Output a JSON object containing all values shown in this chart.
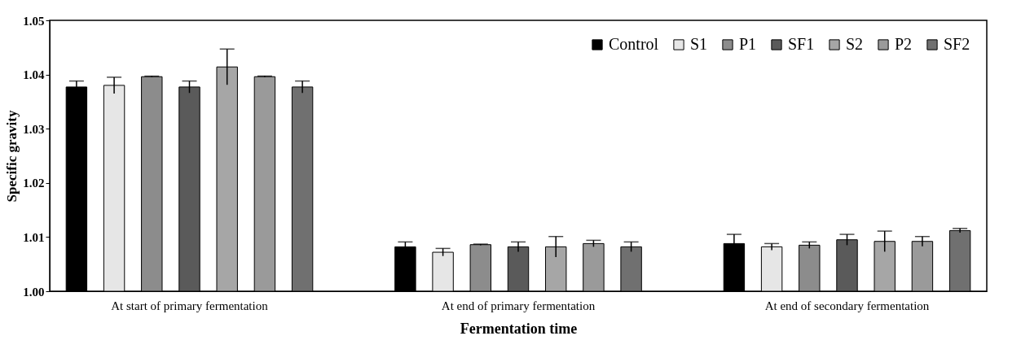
{
  "chart_data": {
    "type": "bar",
    "xlabel": "Fermentation time",
    "ylabel": "Specific gravity",
    "categories": [
      "At start of primary fermentation",
      "At end of primary fermentation",
      "At end of secondary fermentation"
    ],
    "ylim": [
      1.0,
      1.05
    ],
    "yticks": [
      {
        "value": 1.0,
        "label": "1.00"
      },
      1.01,
      1.02,
      1.03,
      1.04,
      1.05
    ],
    "grid": false,
    "legend": "top right",
    "series": [
      {
        "name": "Control",
        "color": "#000000",
        "values": [
          1.0377,
          1.0082,
          1.0088
        ],
        "errors": [
          0.0011,
          0.0009,
          0.0017
        ]
      },
      {
        "name": "S1",
        "color": "#e6e6e6",
        "values": [
          1.038,
          1.0072,
          1.0082
        ],
        "errors": [
          0.0015,
          0.0007,
          0.0006
        ]
      },
      {
        "name": "P1",
        "color": "#8c8c8c",
        "values": [
          1.0396,
          1.0086,
          1.0085
        ],
        "errors": [
          0.0001,
          0.0001,
          0.0006
        ]
      },
      {
        "name": "SF1",
        "color": "#5a5a5a",
        "values": [
          1.0377,
          1.0082,
          1.0095
        ],
        "errors": [
          0.0011,
          0.0009,
          0.001
        ]
      },
      {
        "name": "S2",
        "color": "#a6a6a6",
        "values": [
          1.0414,
          1.0082,
          1.0092
        ],
        "errors": [
          0.0033,
          0.0019,
          0.0019
        ]
      },
      {
        "name": "P2",
        "color": "#9a9a9a",
        "values": [
          1.0396,
          1.0088,
          1.0092
        ],
        "errors": [
          0.0001,
          0.0006,
          0.0009
        ]
      },
      {
        "name": "SF2",
        "color": "#707070",
        "values": [
          1.0377,
          1.0082,
          1.0112
        ],
        "errors": [
          0.0011,
          0.0009,
          0.0004
        ]
      }
    ]
  }
}
